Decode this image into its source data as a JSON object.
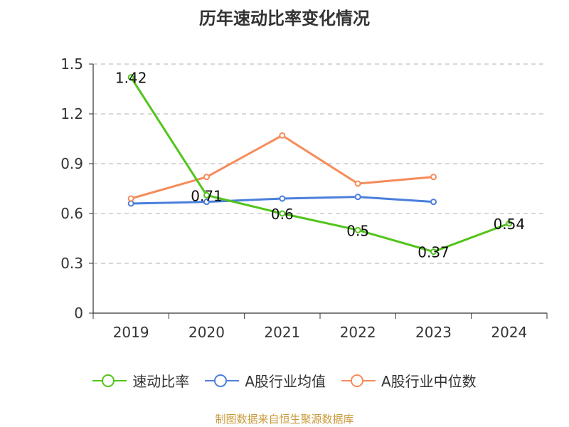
{
  "title": "历年速动比率变化情况",
  "source": "制图数据来自恒生聚源数据库",
  "chart_data": {
    "type": "line",
    "categories": [
      "2019",
      "2020",
      "2021",
      "2022",
      "2023",
      "2024"
    ],
    "ylim": [
      0,
      1.5
    ],
    "yticks": [
      "0",
      "0.3",
      "0.6",
      "0.9",
      "1.2",
      "1.5"
    ],
    "ytick_values": [
      0,
      0.3,
      0.6,
      0.9,
      1.2,
      1.5
    ],
    "grid": true,
    "legend_position": "bottom",
    "series": [
      {
        "name": "速动比率",
        "color": "#52c41a",
        "values": [
          1.42,
          0.71,
          0.6,
          0.5,
          0.37,
          0.54
        ],
        "labels": [
          "1.42",
          "0.71",
          "0.6",
          "0.5",
          "0.37",
          "0.54"
        ]
      },
      {
        "name": "A股行业均值",
        "color": "#4a7fdc",
        "values": [
          0.66,
          0.67,
          0.69,
          0.7,
          0.67,
          null
        ]
      },
      {
        "name": "A股行业中位数",
        "color": "#f58c5a",
        "values": [
          0.69,
          0.82,
          1.07,
          0.78,
          0.82,
          null
        ]
      }
    ]
  }
}
